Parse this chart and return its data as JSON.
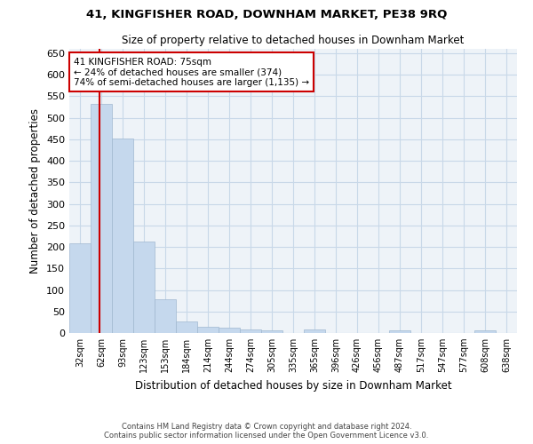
{
  "title": "41, KINGFISHER ROAD, DOWNHAM MARKET, PE38 9RQ",
  "subtitle": "Size of property relative to detached houses in Downham Market",
  "xlabel": "Distribution of detached houses by size in Downham Market",
  "ylabel": "Number of detached properties",
  "footer_line1": "Contains HM Land Registry data © Crown copyright and database right 2024.",
  "footer_line2": "Contains public sector information licensed under the Open Government Licence v3.0.",
  "bin_labels": [
    "32sqm",
    "62sqm",
    "93sqm",
    "123sqm",
    "153sqm",
    "184sqm",
    "214sqm",
    "244sqm",
    "274sqm",
    "305sqm",
    "335sqm",
    "365sqm",
    "396sqm",
    "426sqm",
    "456sqm",
    "487sqm",
    "517sqm",
    "547sqm",
    "577sqm",
    "608sqm",
    "638sqm"
  ],
  "bar_values": [
    208,
    533,
    452,
    212,
    78,
    26,
    15,
    12,
    8,
    7,
    0,
    8,
    0,
    0,
    0,
    7,
    0,
    0,
    0,
    7,
    0
  ],
  "bar_color": "#c5d8ed",
  "bar_edgecolor": "#a0b8d0",
  "grid_color": "#c8d8e8",
  "property_label": "41 KINGFISHER ROAD: 75sqm",
  "annotation_line1": "← 24% of detached houses are smaller (374)",
  "annotation_line2": "74% of semi-detached houses are larger (1,135) →",
  "vline_color": "#cc0000",
  "annotation_box_edgecolor": "#cc0000",
  "annotation_box_facecolor": "#ffffff",
  "ylim": [
    0,
    660
  ],
  "yticks": [
    0,
    50,
    100,
    150,
    200,
    250,
    300,
    350,
    400,
    450,
    500,
    550,
    600,
    650
  ],
  "vline_x": 0.92
}
